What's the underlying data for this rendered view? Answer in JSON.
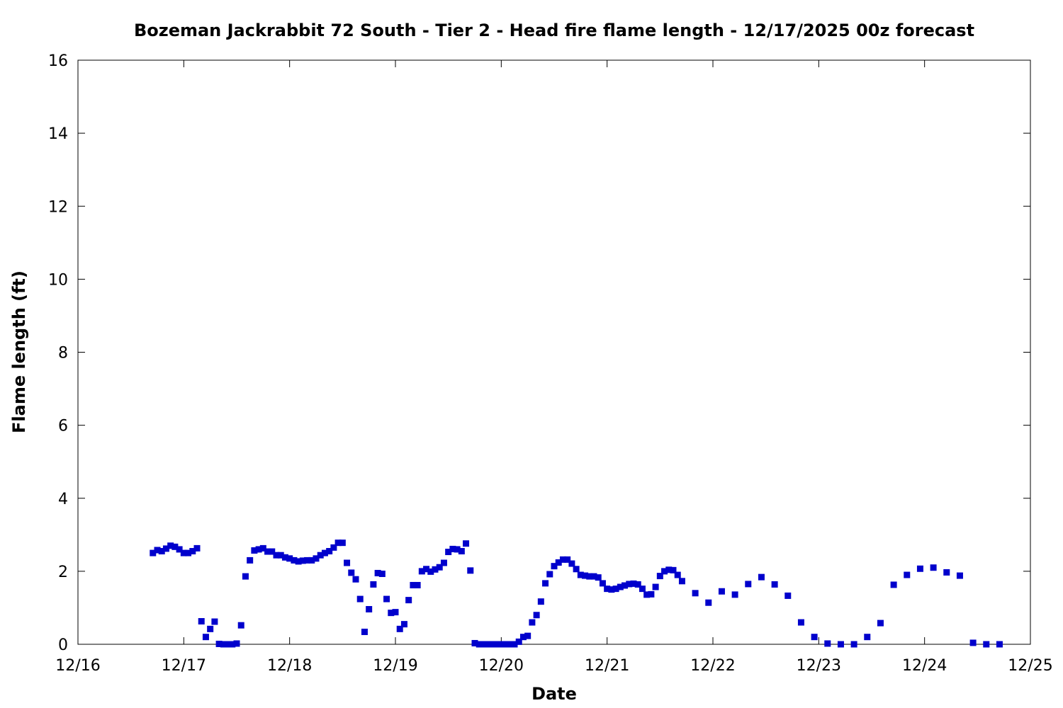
{
  "chart_data": {
    "type": "scatter",
    "title": "Bozeman Jackrabbit 72 South - Tier 2 - Head fire flame length - 12/17/2025 00z forecast",
    "xlabel": "Date",
    "ylabel": "Flame length (ft)",
    "xlim": [
      "2025-12-16T00:00",
      "2025-12-25T00:00"
    ],
    "ylim": [
      0,
      16
    ],
    "x_ticks": [
      {
        "value": "2025-12-16T00:00",
        "label": "12/16"
      },
      {
        "value": "2025-12-17T00:00",
        "label": "12/17"
      },
      {
        "value": "2025-12-18T00:00",
        "label": "12/18"
      },
      {
        "value": "2025-12-19T00:00",
        "label": "12/19"
      },
      {
        "value": "2025-12-20T00:00",
        "label": "12/20"
      },
      {
        "value": "2025-12-21T00:00",
        "label": "12/21"
      },
      {
        "value": "2025-12-22T00:00",
        "label": "12/22"
      },
      {
        "value": "2025-12-23T00:00",
        "label": "12/23"
      },
      {
        "value": "2025-12-24T00:00",
        "label": "12/24"
      },
      {
        "value": "2025-12-25T00:00",
        "label": "12/25"
      }
    ],
    "y_ticks": [
      0,
      2,
      4,
      6,
      8,
      10,
      12,
      14,
      16
    ],
    "grid": false,
    "marker_color": "#0000cc",
    "series": [
      {
        "points": [
          [
            "2025-12-16T17:00",
            2.5
          ],
          [
            "2025-12-16T18:00",
            2.58
          ],
          [
            "2025-12-16T19:00",
            2.55
          ],
          [
            "2025-12-16T20:00",
            2.62
          ],
          [
            "2025-12-16T21:00",
            2.7
          ],
          [
            "2025-12-16T22:00",
            2.67
          ],
          [
            "2025-12-16T23:00",
            2.6
          ],
          [
            "2025-12-17T00:00",
            2.5
          ],
          [
            "2025-12-17T01:00",
            2.5
          ],
          [
            "2025-12-17T02:00",
            2.55
          ],
          [
            "2025-12-17T03:00",
            2.63
          ],
          [
            "2025-12-17T04:00",
            0.63
          ],
          [
            "2025-12-17T05:00",
            0.2
          ],
          [
            "2025-12-17T06:00",
            0.42
          ],
          [
            "2025-12-17T07:00",
            0.62
          ],
          [
            "2025-12-17T08:00",
            0.01
          ],
          [
            "2025-12-17T09:00",
            0.0
          ],
          [
            "2025-12-17T10:00",
            0.0
          ],
          [
            "2025-12-17T11:00",
            0.0
          ],
          [
            "2025-12-17T12:00",
            0.02
          ],
          [
            "2025-12-17T13:00",
            0.52
          ],
          [
            "2025-12-17T14:00",
            1.86
          ],
          [
            "2025-12-17T15:00",
            2.3
          ],
          [
            "2025-12-17T16:00",
            2.57
          ],
          [
            "2025-12-17T17:00",
            2.6
          ],
          [
            "2025-12-17T18:00",
            2.63
          ],
          [
            "2025-12-17T19:00",
            2.54
          ],
          [
            "2025-12-17T20:00",
            2.54
          ],
          [
            "2025-12-17T21:00",
            2.44
          ],
          [
            "2025-12-17T22:00",
            2.44
          ],
          [
            "2025-12-17T23:00",
            2.38
          ],
          [
            "2025-12-18T00:00",
            2.35
          ],
          [
            "2025-12-18T01:00",
            2.3
          ],
          [
            "2025-12-18T02:00",
            2.27
          ],
          [
            "2025-12-18T03:00",
            2.29
          ],
          [
            "2025-12-18T04:00",
            2.3
          ],
          [
            "2025-12-18T05:00",
            2.3
          ],
          [
            "2025-12-18T06:00",
            2.35
          ],
          [
            "2025-12-18T07:00",
            2.44
          ],
          [
            "2025-12-18T08:00",
            2.5
          ],
          [
            "2025-12-18T09:00",
            2.55
          ],
          [
            "2025-12-18T10:00",
            2.65
          ],
          [
            "2025-12-18T11:00",
            2.78
          ],
          [
            "2025-12-18T12:00",
            2.78
          ],
          [
            "2025-12-18T13:00",
            2.23
          ],
          [
            "2025-12-18T14:00",
            1.96
          ],
          [
            "2025-12-18T15:00",
            1.78
          ],
          [
            "2025-12-18T16:00",
            1.24
          ],
          [
            "2025-12-18T17:00",
            0.34
          ],
          [
            "2025-12-18T18:00",
            0.96
          ],
          [
            "2025-12-18T19:00",
            1.64
          ],
          [
            "2025-12-18T20:00",
            1.95
          ],
          [
            "2025-12-18T21:00",
            1.93
          ],
          [
            "2025-12-18T22:00",
            1.24
          ],
          [
            "2025-12-18T23:00",
            0.86
          ],
          [
            "2025-12-19T00:00",
            0.88
          ],
          [
            "2025-12-19T01:00",
            0.42
          ],
          [
            "2025-12-19T02:00",
            0.55
          ],
          [
            "2025-12-19T03:00",
            1.21
          ],
          [
            "2025-12-19T04:00",
            1.62
          ],
          [
            "2025-12-19T05:00",
            1.62
          ],
          [
            "2025-12-19T06:00",
            2.0
          ],
          [
            "2025-12-19T07:00",
            2.06
          ],
          [
            "2025-12-19T08:00",
            1.99
          ],
          [
            "2025-12-19T09:00",
            2.05
          ],
          [
            "2025-12-19T10:00",
            2.11
          ],
          [
            "2025-12-19T11:00",
            2.23
          ],
          [
            "2025-12-19T12:00",
            2.53
          ],
          [
            "2025-12-19T13:00",
            2.61
          ],
          [
            "2025-12-19T14:00",
            2.6
          ],
          [
            "2025-12-19T15:00",
            2.55
          ],
          [
            "2025-12-19T16:00",
            2.76
          ],
          [
            "2025-12-19T17:00",
            2.02
          ],
          [
            "2025-12-19T18:00",
            0.03
          ],
          [
            "2025-12-19T19:00",
            0.0
          ],
          [
            "2025-12-19T20:00",
            0.0
          ],
          [
            "2025-12-19T21:00",
            0.0
          ],
          [
            "2025-12-19T22:00",
            0.0
          ],
          [
            "2025-12-19T23:00",
            0.0
          ],
          [
            "2025-12-20T00:00",
            0.0
          ],
          [
            "2025-12-20T01:00",
            0.0
          ],
          [
            "2025-12-20T02:00",
            0.0
          ],
          [
            "2025-12-20T03:00",
            0.0
          ],
          [
            "2025-12-20T04:00",
            0.07
          ],
          [
            "2025-12-20T05:00",
            0.2
          ],
          [
            "2025-12-20T06:00",
            0.23
          ],
          [
            "2025-12-20T07:00",
            0.6
          ],
          [
            "2025-12-20T08:00",
            0.8
          ],
          [
            "2025-12-20T09:00",
            1.17
          ],
          [
            "2025-12-20T10:00",
            1.67
          ],
          [
            "2025-12-20T11:00",
            1.92
          ],
          [
            "2025-12-20T12:00",
            2.14
          ],
          [
            "2025-12-20T13:00",
            2.24
          ],
          [
            "2025-12-20T14:00",
            2.32
          ],
          [
            "2025-12-20T15:00",
            2.32
          ],
          [
            "2025-12-20T16:00",
            2.21
          ],
          [
            "2025-12-20T17:00",
            2.06
          ],
          [
            "2025-12-20T18:00",
            1.9
          ],
          [
            "2025-12-20T19:00",
            1.88
          ],
          [
            "2025-12-20T20:00",
            1.86
          ],
          [
            "2025-12-20T21:00",
            1.86
          ],
          [
            "2025-12-20T22:00",
            1.83
          ],
          [
            "2025-12-20T23:00",
            1.67
          ],
          [
            "2025-12-21T00:00",
            1.52
          ],
          [
            "2025-12-21T01:00",
            1.5
          ],
          [
            "2025-12-21T02:00",
            1.52
          ],
          [
            "2025-12-21T03:00",
            1.57
          ],
          [
            "2025-12-21T04:00",
            1.61
          ],
          [
            "2025-12-21T05:00",
            1.65
          ],
          [
            "2025-12-21T06:00",
            1.66
          ],
          [
            "2025-12-21T07:00",
            1.64
          ],
          [
            "2025-12-21T08:00",
            1.52
          ],
          [
            "2025-12-21T09:00",
            1.36
          ],
          [
            "2025-12-21T10:00",
            1.37
          ],
          [
            "2025-12-21T11:00",
            1.57
          ],
          [
            "2025-12-21T12:00",
            1.87
          ],
          [
            "2025-12-21T13:00",
            2.0
          ],
          [
            "2025-12-21T14:00",
            2.04
          ],
          [
            "2025-12-21T15:00",
            2.03
          ],
          [
            "2025-12-21T16:00",
            1.9
          ],
          [
            "2025-12-21T17:00",
            1.73
          ],
          [
            "2025-12-21T20:00",
            1.4
          ],
          [
            "2025-12-21T23:00",
            1.14
          ],
          [
            "2025-12-22T02:00",
            1.45
          ],
          [
            "2025-12-22T05:00",
            1.36
          ],
          [
            "2025-12-22T08:00",
            1.65
          ],
          [
            "2025-12-22T11:00",
            1.84
          ],
          [
            "2025-12-22T14:00",
            1.64
          ],
          [
            "2025-12-22T17:00",
            1.33
          ],
          [
            "2025-12-22T20:00",
            0.6
          ],
          [
            "2025-12-22T23:00",
            0.2
          ],
          [
            "2025-12-23T02:00",
            0.02
          ],
          [
            "2025-12-23T05:00",
            0.0
          ],
          [
            "2025-12-23T08:00",
            0.0
          ],
          [
            "2025-12-23T11:00",
            0.2
          ],
          [
            "2025-12-23T14:00",
            0.58
          ],
          [
            "2025-12-23T17:00",
            1.63
          ],
          [
            "2025-12-23T20:00",
            1.9
          ],
          [
            "2025-12-23T23:00",
            2.07
          ],
          [
            "2025-12-24T02:00",
            2.1
          ],
          [
            "2025-12-24T05:00",
            1.97
          ],
          [
            "2025-12-24T08:00",
            1.88
          ],
          [
            "2025-12-24T11:00",
            0.04
          ],
          [
            "2025-12-24T14:00",
            0.0
          ],
          [
            "2025-12-24T17:00",
            0.0
          ]
        ]
      }
    ]
  }
}
